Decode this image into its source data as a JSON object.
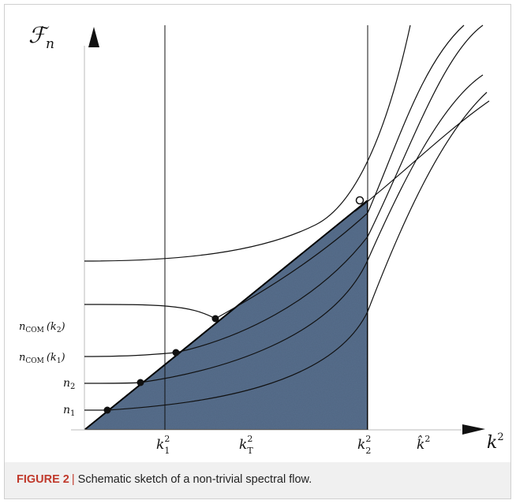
{
  "figure": {
    "caption_label": "FIGURE 2",
    "caption_separator": "|",
    "caption_text": "Schematic sketch of a non-trivial spectral flow."
  },
  "axes": {
    "y_label_main": "ℱ",
    "y_label_sub": "n",
    "x_label_main": "k",
    "x_label_sup": "2"
  },
  "x_ticks": [
    {
      "main": "k",
      "sub": "1",
      "sup": "2"
    },
    {
      "main": "k",
      "sub": "T",
      "sup": "2"
    },
    {
      "main": "k",
      "sub": "2",
      "sup": "2"
    },
    {
      "main": "k̂",
      "sub": "",
      "sup": "2"
    }
  ],
  "y_ticks": [
    {
      "main": "n",
      "sub": "COM",
      "arg": "(k",
      "argsub": "2",
      "close": ")"
    },
    {
      "main": "n",
      "sub": "COM",
      "arg": "(k",
      "argsub": "1",
      "close": ")"
    },
    {
      "main": "n",
      "sub": "2",
      "arg": "",
      "argsub": "",
      "close": ""
    },
    {
      "main": "n",
      "sub": "1",
      "arg": "",
      "argsub": "",
      "close": ""
    }
  ],
  "colors": {
    "triangle_fill": "#58708e",
    "line": "#111111",
    "caption_accent": "#c0392b"
  }
}
